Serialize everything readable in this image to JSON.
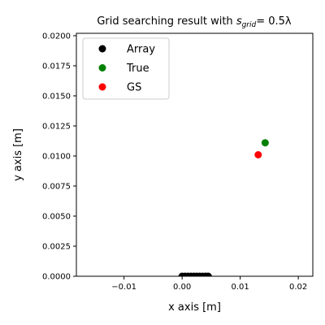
{
  "chart_data": {
    "type": "scatter",
    "title": "Grid searching result with ",
    "title_math": {
      "symbol": "s",
      "subscript": "grid",
      "rest": "= 0.5λ"
    },
    "xlabel": "x axis [m]",
    "ylabel": "y axis [m]",
    "xlim": [
      -0.0182,
      0.0225
    ],
    "ylim": [
      0,
      0.0202
    ],
    "xticks": [
      -0.01,
      0.0,
      0.01,
      0.02
    ],
    "xtick_labels": [
      "−0.01",
      "0.00",
      "0.01",
      "0.02"
    ],
    "yticks": [
      0.0,
      0.0025,
      0.005,
      0.0075,
      0.01,
      0.0125,
      0.015,
      0.0175,
      0.02
    ],
    "ytick_labels": [
      "0.0000",
      "0.0025",
      "0.0050",
      "0.0075",
      "0.0100",
      "0.0125",
      "0.0150",
      "0.0175",
      "0.0200"
    ],
    "grid": false,
    "legend_position": "upper-left",
    "series": [
      {
        "name": "Array",
        "color": "#000000",
        "points": [
          [
            0.0,
            0.0
          ],
          [
            0.0005,
            0.0
          ],
          [
            0.001,
            0.0
          ],
          [
            0.0015,
            0.0
          ],
          [
            0.002,
            0.0
          ],
          [
            0.0025,
            0.0
          ],
          [
            0.003,
            0.0
          ],
          [
            0.0035,
            0.0
          ],
          [
            0.004,
            0.0
          ],
          [
            0.0045,
            0.0
          ]
        ]
      },
      {
        "name": "True",
        "color": "#008000",
        "points": [
          [
            0.0143,
            0.0111
          ]
        ]
      },
      {
        "name": "GS",
        "color": "#ff0000",
        "points": [
          [
            0.0131,
            0.0101
          ]
        ]
      }
    ]
  }
}
